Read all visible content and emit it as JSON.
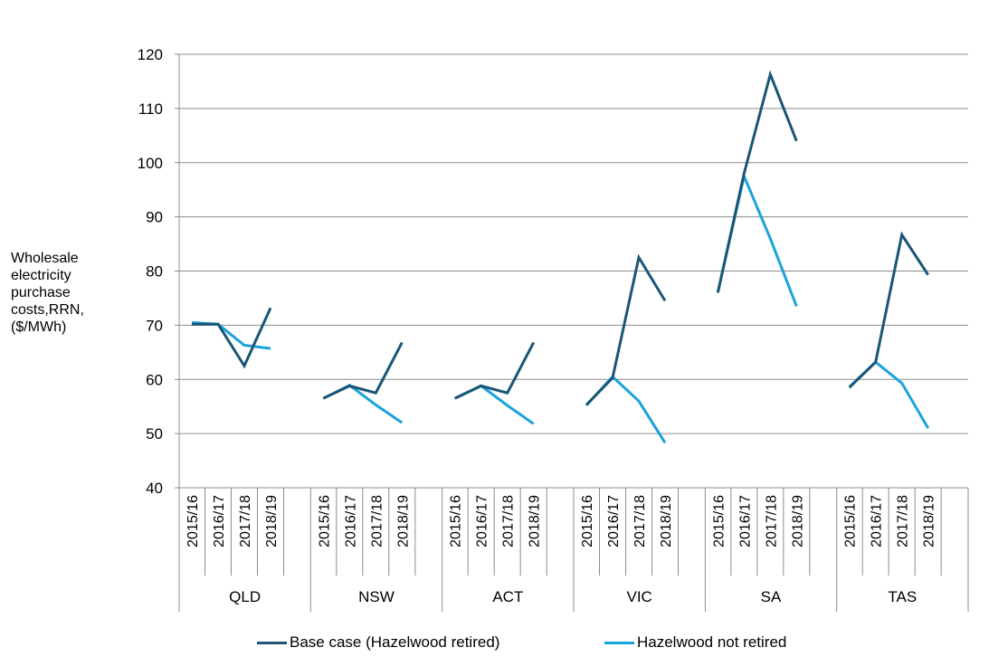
{
  "chart_data": {
    "type": "line",
    "title": "",
    "ylabel": "Wholesale\nelectricity\npurchase\ncosts,RRN,\n($/MWh)",
    "xlabel": "",
    "ylim": [
      40,
      120
    ],
    "yticks": [
      40,
      50,
      60,
      70,
      80,
      90,
      100,
      110,
      120
    ],
    "grid": true,
    "legend_position": "bottom",
    "groups": [
      "QLD",
      "NSW",
      "ACT",
      "VIC",
      "SA",
      "TAS"
    ],
    "years": [
      "2015/16",
      "2016/17",
      "2017/18",
      "2018/19"
    ],
    "series": [
      {
        "name": "Base case (Hazelwood retired)",
        "color": "#1b5676",
        "values": [
          [
            70.2,
            70.2,
            62.5,
            73.2
          ],
          [
            56.5,
            58.8,
            57.5,
            66.8
          ],
          [
            56.5,
            58.8,
            57.5,
            66.8
          ],
          [
            55.3,
            60.3,
            82.5,
            74.5
          ],
          [
            76.0,
            98.0,
            116.3,
            104.0
          ],
          [
            58.5,
            63.2,
            86.7,
            79.3
          ]
        ]
      },
      {
        "name": "Hazelwood not retired",
        "color": "#1ba3dc",
        "values": [
          [
            70.5,
            70.2,
            66.3,
            65.7
          ],
          [
            56.5,
            58.9,
            55.3,
            52.0
          ],
          [
            56.5,
            58.8,
            55.2,
            51.8
          ],
          [
            55.2,
            60.5,
            56.0,
            48.3
          ],
          [
            76.0,
            97.5,
            86.0,
            73.5
          ],
          [
            58.6,
            63.2,
            59.3,
            51.0
          ]
        ]
      }
    ]
  }
}
